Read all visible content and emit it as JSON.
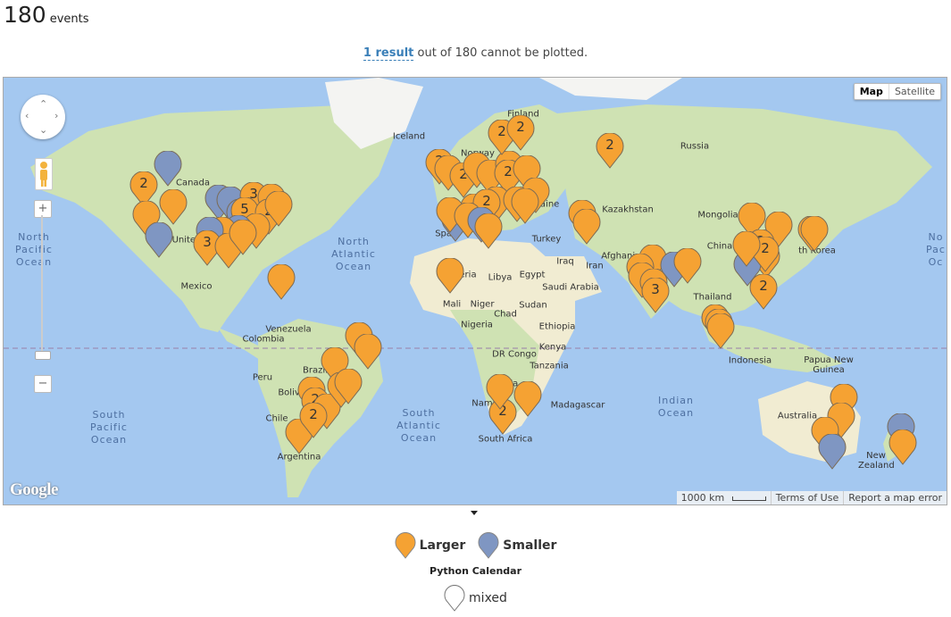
{
  "header": {
    "count": "180",
    "unit": "events"
  },
  "notice": {
    "link": "1 result",
    "text": " out of 180 cannot be plotted."
  },
  "map": {
    "type_buttons": [
      "Map",
      "Satellite"
    ],
    "logo": "Google",
    "scale_label": "1000 km",
    "terms": "Terms of Use",
    "report": "Report a map error",
    "zoom_in": "+",
    "zoom_out": "−",
    "oceans": [
      {
        "text": "North Pacific Ocean",
        "lines": [
          "North",
          "Pacific",
          "Ocean"
        ]
      },
      {
        "text": "North Atlantic Ocean",
        "lines": [
          "North",
          "Atlantic",
          "Ocean"
        ]
      },
      {
        "text": "South Pacific Ocean",
        "lines": [
          "South",
          "Pacific",
          "Ocean"
        ]
      },
      {
        "text": "South Atlantic Ocean",
        "lines": [
          "South",
          "Atlantic",
          "Ocean"
        ]
      },
      {
        "text": "Indian Ocean",
        "lines": [
          "Indian",
          "Ocean"
        ]
      },
      {
        "text": "No Pac Oc",
        "lines": [
          "No",
          "Pac",
          "Oc"
        ]
      }
    ],
    "labels": [
      "Canada",
      "United",
      "Mexico",
      "Colombia",
      "Venezuela",
      "Peru",
      "Brazil",
      "Bolivia",
      "Chile",
      "Argentina",
      "Iceland",
      "Finland",
      "Norway",
      "Russia",
      "Kazakhstan",
      "Mongolia",
      "China",
      "Ukraine",
      "Turkey",
      "Iraq",
      "Iran",
      "Afghanistan",
      "Saudi Arabia",
      "Egypt",
      "Libya",
      "Algeria",
      "Mali",
      "Niger",
      "Chad",
      "Sudan",
      "Nigeria",
      "Ethiopia",
      "DR Congo",
      "Kenya",
      "Tanzania",
      "Angola",
      "Namibia",
      "Madagascar",
      "South Africa",
      "Thailand",
      "Indonesia",
      "Papua New Guinea",
      "Australia",
      "New Zealand",
      "Spai",
      "th Korea"
    ],
    "colors": {
      "larger": "#f5a233",
      "smaller": "#7f96c2",
      "water": "#a4c8f0",
      "land": "#cfe2b3"
    }
  },
  "markers": [
    {
      "kind": "smaller",
      "label": ""
    },
    {
      "kind": "larger",
      "label": "2"
    },
    {
      "kind": "larger",
      "label": ""
    },
    {
      "kind": "larger",
      "label": ""
    },
    {
      "kind": "smaller",
      "label": ""
    },
    {
      "kind": "smaller",
      "label": ""
    },
    {
      "kind": "smaller",
      "label": ""
    },
    {
      "kind": "larger",
      "label": "3"
    },
    {
      "kind": "larger",
      "label": ""
    },
    {
      "kind": "smaller",
      "label": ""
    },
    {
      "kind": "larger",
      "label": "5"
    },
    {
      "kind": "larger",
      "label": "2"
    },
    {
      "kind": "larger",
      "label": ""
    },
    {
      "kind": "larger",
      "label": ""
    },
    {
      "kind": "smaller",
      "label": ""
    },
    {
      "kind": "larger",
      "label": ""
    },
    {
      "kind": "smaller",
      "label": ""
    },
    {
      "kind": "larger",
      "label": "3"
    },
    {
      "kind": "larger",
      "label": ""
    },
    {
      "kind": "larger",
      "label": ""
    },
    {
      "kind": "smaller",
      "label": ""
    },
    {
      "kind": "larger",
      "label": "2"
    },
    {
      "kind": "larger",
      "label": ""
    },
    {
      "kind": "larger",
      "label": "2"
    },
    {
      "kind": "larger",
      "label": ""
    },
    {
      "kind": "larger",
      "label": ""
    },
    {
      "kind": "larger",
      "label": ""
    },
    {
      "kind": "larger",
      "label": "2"
    },
    {
      "kind": "larger",
      "label": "2"
    },
    {
      "kind": "larger",
      "label": "2"
    },
    {
      "kind": "larger",
      "label": ""
    },
    {
      "kind": "larger",
      "label": ""
    },
    {
      "kind": "larger",
      "label": ""
    },
    {
      "kind": "larger",
      "label": ""
    },
    {
      "kind": "larger",
      "label": "2"
    },
    {
      "kind": "larger",
      "label": ""
    },
    {
      "kind": "larger",
      "label": ""
    },
    {
      "kind": "larger",
      "label": ""
    },
    {
      "kind": "larger",
      "label": ""
    },
    {
      "kind": "smaller",
      "label": ""
    },
    {
      "kind": "larger",
      "label": ""
    },
    {
      "kind": "larger",
      "label": ""
    },
    {
      "kind": "larger",
      "label": "2"
    },
    {
      "kind": "larger",
      "label": ""
    },
    {
      "kind": "larger",
      "label": ""
    },
    {
      "kind": "larger",
      "label": ""
    },
    {
      "kind": "larger",
      "label": "2"
    },
    {
      "kind": "larger",
      "label": ""
    },
    {
      "kind": "smaller",
      "label": ""
    },
    {
      "kind": "larger",
      "label": "2"
    },
    {
      "kind": "larger",
      "label": ""
    },
    {
      "kind": "larger",
      "label": ""
    },
    {
      "kind": "larger",
      "label": ""
    },
    {
      "kind": "larger",
      "label": ""
    },
    {
      "kind": "larger",
      "label": "3"
    },
    {
      "kind": "smaller",
      "label": ""
    },
    {
      "kind": "larger",
      "label": ""
    },
    {
      "kind": "larger",
      "label": ""
    },
    {
      "kind": "larger",
      "label": ""
    },
    {
      "kind": "larger",
      "label": ""
    },
    {
      "kind": "larger",
      "label": "2"
    },
    {
      "kind": "larger",
      "label": ""
    },
    {
      "kind": "larger",
      "label": "2"
    },
    {
      "kind": "larger",
      "label": ""
    },
    {
      "kind": "larger",
      "label": ""
    },
    {
      "kind": "larger",
      "label": ""
    },
    {
      "kind": "larger",
      "label": ""
    },
    {
      "kind": "larger",
      "label": ""
    },
    {
      "kind": "larger",
      "label": ""
    },
    {
      "kind": "larger",
      "label": "2"
    },
    {
      "kind": "larger",
      "label": ""
    },
    {
      "kind": "larger",
      "label": ""
    },
    {
      "kind": "larger",
      "label": ""
    },
    {
      "kind": "larger",
      "label": ""
    },
    {
      "kind": "larger",
      "label": "2"
    },
    {
      "kind": "larger",
      "label": ""
    },
    {
      "kind": "larger",
      "label": ""
    },
    {
      "kind": "larger",
      "label": ""
    },
    {
      "kind": "smaller",
      "label": ""
    },
    {
      "kind": "smaller",
      "label": ""
    },
    {
      "kind": "larger",
      "label": ""
    },
    {
      "kind": "larger",
      "label": ""
    },
    {
      "kind": "larger",
      "label": ""
    },
    {
      "kind": "larger",
      "label": ""
    },
    {
      "kind": "larger",
      "label": ""
    }
  ],
  "legend": {
    "larger": "Larger",
    "smaller": "Smaller",
    "calendar": "Python Calendar",
    "mixed": "mixed"
  }
}
